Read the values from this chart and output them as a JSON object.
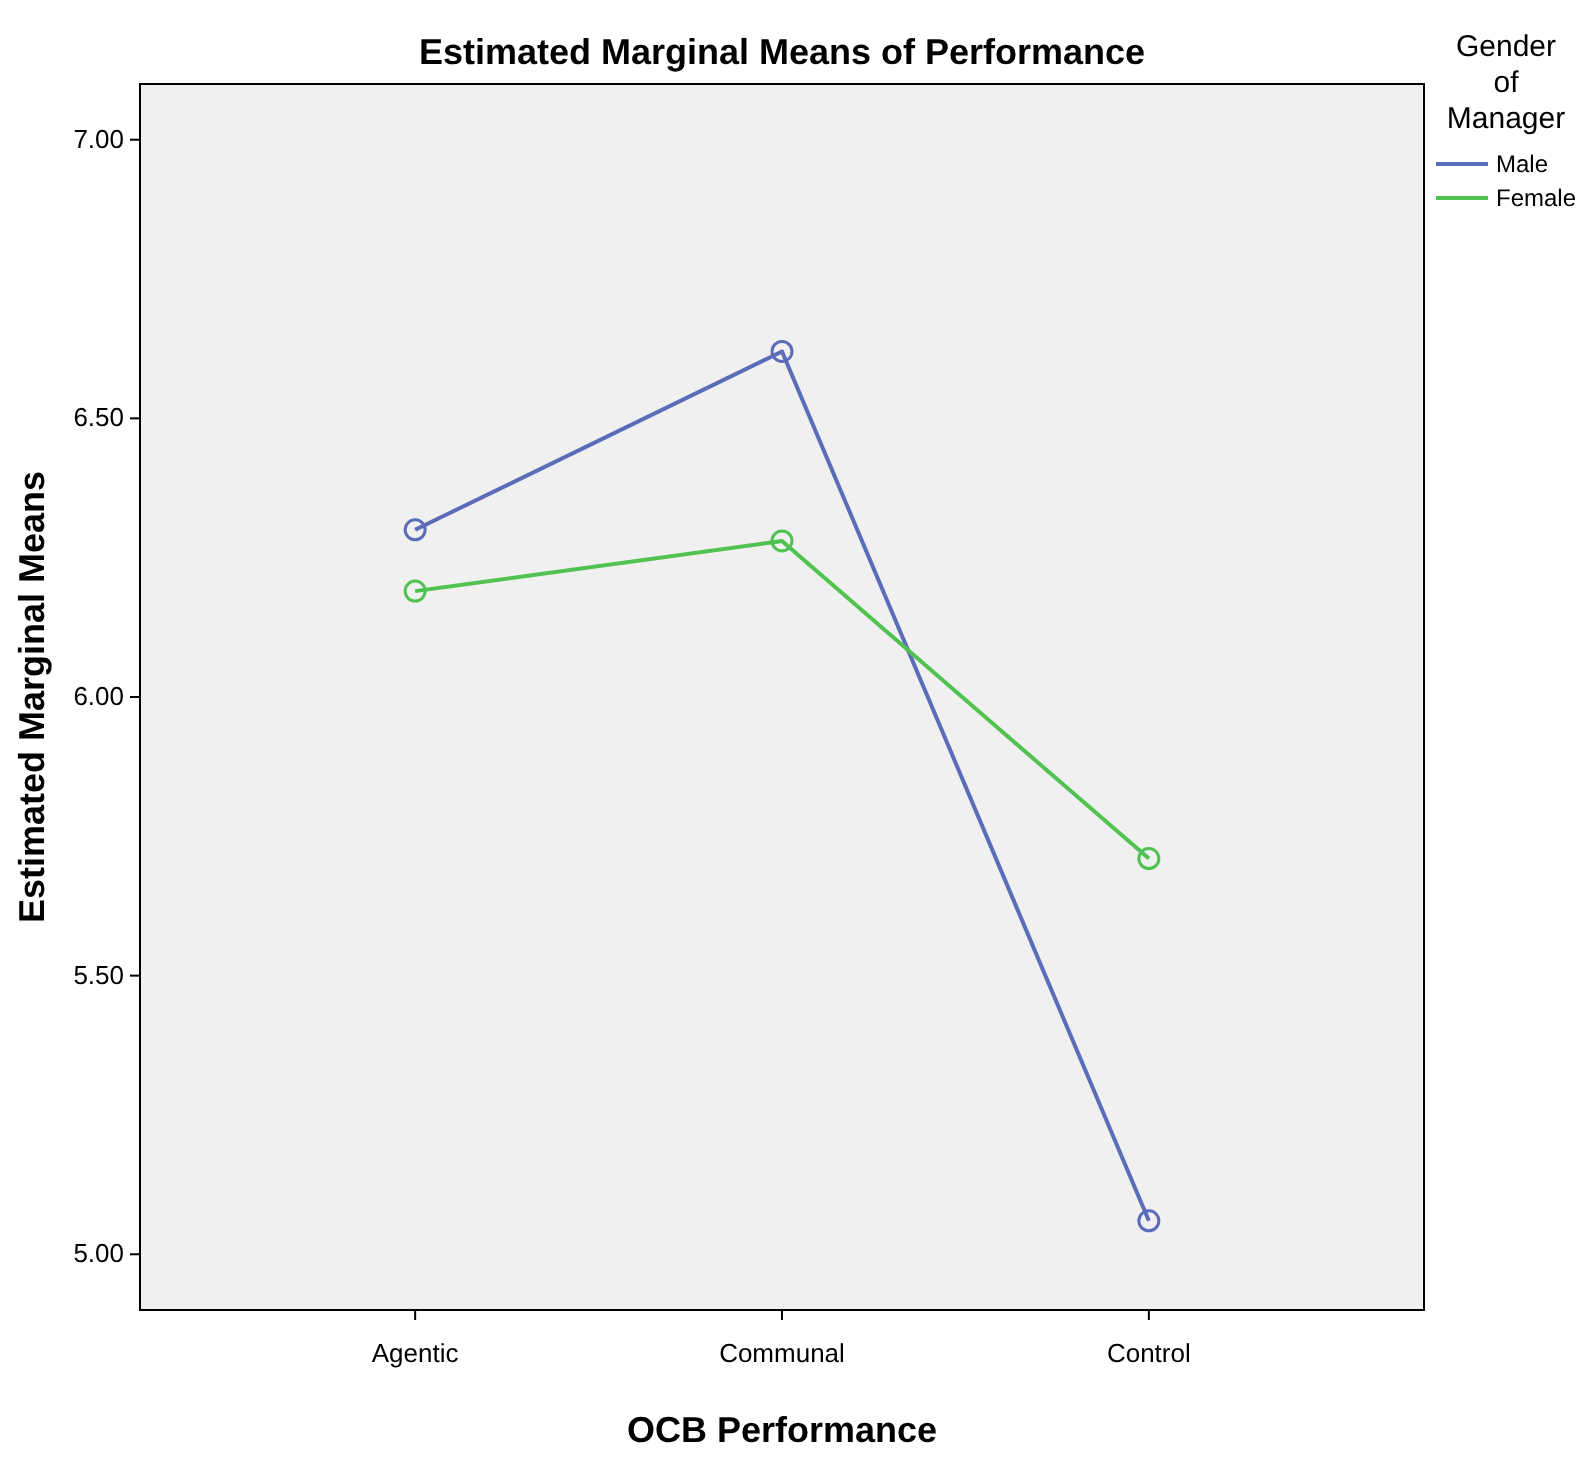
{
  "chart_data": {
    "type": "line",
    "title": "Estimated Marginal Means of Performance",
    "xlabel": "OCB Performance",
    "ylabel": "Estimated Marginal Means",
    "legend_title": "Gender of Manager",
    "categories": [
      "Agentic",
      "Communal",
      "Control"
    ],
    "series": [
      {
        "name": "Male",
        "color": "#5b6db8",
        "values": [
          6.3,
          6.62,
          5.06
        ]
      },
      {
        "name": "Female",
        "color": "#4fc24f",
        "values": [
          6.19,
          6.28,
          5.71
        ]
      }
    ],
    "ylim": [
      4.9,
      7.1
    ],
    "yticks": [
      {
        "value": 5,
        "label": "5.00"
      },
      {
        "value": 5.5,
        "label": "5.50"
      },
      {
        "value": 6,
        "label": "6.00"
      },
      {
        "value": 6.5,
        "label": "6.50"
      },
      {
        "value": 7,
        "label": "7.00"
      }
    ],
    "marker": "circle",
    "legend": "top right",
    "grid": false
  }
}
